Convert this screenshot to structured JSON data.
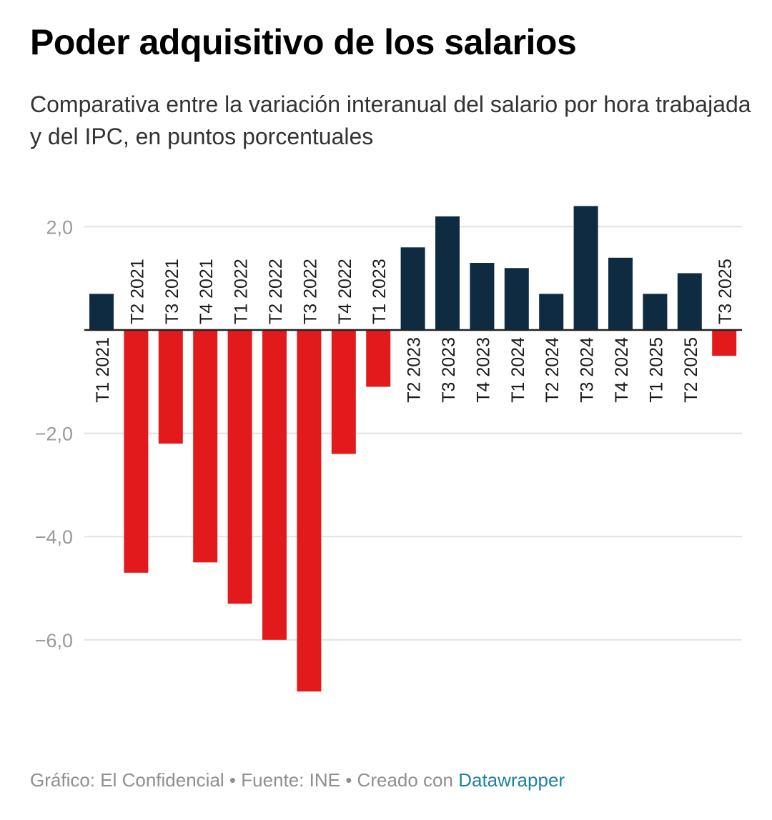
{
  "header": {
    "title": "Poder adquisitivo de los salarios",
    "subtitle": "Comparativa entre la variación interanual del salario por hora trabajada y del IPC, en puntos porcentuales"
  },
  "footer": {
    "credit": "Gráfico: El Confidencial",
    "separator": " • ",
    "source": "Fuente: INE",
    "created_prefix": "Creado con ",
    "created_link": "Datawrapper"
  },
  "colors": {
    "positive": "#0f2b41",
    "negative": "#e31a1c",
    "grid": "#e2e2e2",
    "axis_text": "#9a9a9a",
    "link": "#1d81a2"
  },
  "chart_data": {
    "type": "bar",
    "title": "Poder adquisitivo de los salarios",
    "subtitle": "Comparativa entre la variación interanual del salario por hora trabajada y del IPC, en puntos porcentuales",
    "xlabel": "",
    "ylabel": "",
    "ylim": [
      -7.0,
      2.6
    ],
    "yticks": [
      2,
      -2,
      -4,
      -6
    ],
    "ytick_labels": [
      "2,0",
      "−2,0",
      "−4,0",
      "−6,0"
    ],
    "grid": true,
    "legend": "none",
    "categories": [
      "T1 2021",
      "T2 2021",
      "T3 2021",
      "T4 2021",
      "T1 2022",
      "T2 2022",
      "T3 2022",
      "T4 2022",
      "T1 2023",
      "T2 2023",
      "T3 2023",
      "T4 2023",
      "T1 2024",
      "T2 2024",
      "T3 2024",
      "T4 2024",
      "T1 2025",
      "T2 2025",
      "T3 2025"
    ],
    "values": [
      0.7,
      -4.7,
      -2.2,
      -4.5,
      -5.3,
      -6.0,
      -7.0,
      -2.4,
      -1.1,
      1.6,
      2.2,
      1.3,
      1.2,
      0.7,
      2.4,
      1.4,
      0.7,
      1.1,
      -0.5
    ]
  }
}
